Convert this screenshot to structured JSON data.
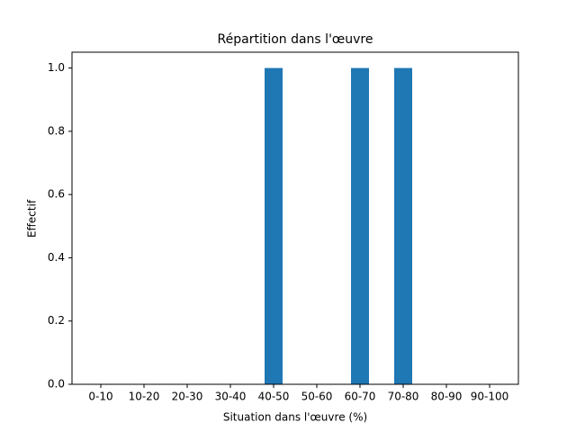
{
  "chart_data": {
    "type": "bar",
    "title": "Répartition dans l'œuvre",
    "xlabel": "Situation dans l'œuvre (%)",
    "ylabel": "Effectif",
    "categories": [
      "0-10",
      "10-20",
      "20-30",
      "30-40",
      "40-50",
      "50-60",
      "60-70",
      "70-80",
      "80-90",
      "90-100"
    ],
    "values": [
      0,
      0,
      0,
      0,
      1,
      0,
      1,
      1,
      0,
      0
    ],
    "color": "#1f77b4",
    "ylim": [
      0,
      1.05
    ],
    "yticks": [
      {
        "value": 0,
        "label": "0.0"
      },
      {
        "value": 0.2,
        "label": "0.2"
      },
      {
        "value": 0.4,
        "label": "0.4"
      },
      {
        "value": 0.6,
        "label": "0.6"
      },
      {
        "value": 0.8,
        "label": "0.8"
      },
      {
        "value": 1,
        "label": "1.0"
      }
    ],
    "grid": false
  }
}
